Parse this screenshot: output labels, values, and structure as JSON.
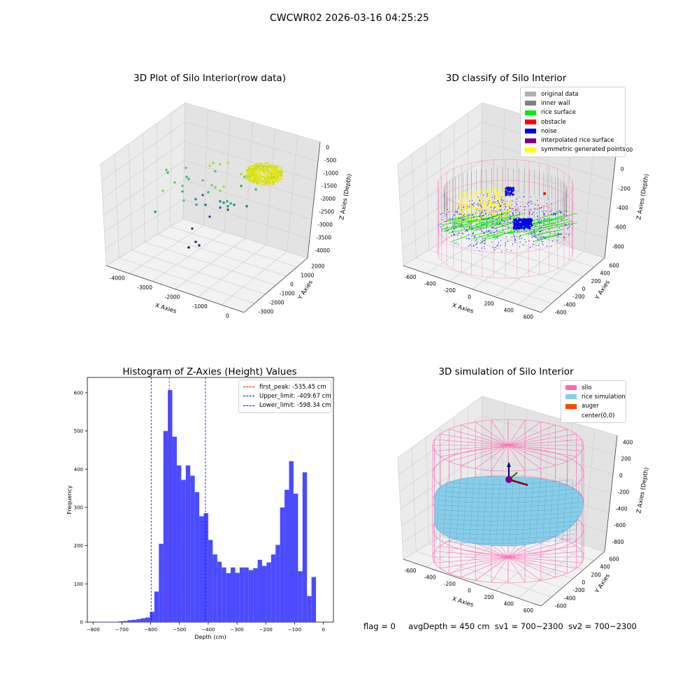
{
  "suptitle": "CWCWR02 2026-03-16 04:25:25",
  "chart_data": [
    {
      "type": "scatter",
      "title": "3D Plot of Silo Interior(row data)",
      "xlabel": "X Axies",
      "ylabel": "Y Axies",
      "zlabel": "Z Axies (Depth)",
      "x_ticks": [
        "-4000",
        "-3000",
        "-2000",
        "-1000",
        "0"
      ],
      "y_ticks": [
        "-3000",
        "-2000",
        "-1000",
        "0",
        "1000",
        "2000"
      ],
      "z_ticks": [
        "0",
        "-500",
        "-1000",
        "-1500",
        "-2000",
        "-2500",
        "-3000",
        "-3500",
        "-4000"
      ],
      "grid": true
    },
    {
      "type": "scatter",
      "title": "3D classify of Silo Interior",
      "xlabel": "X Axies",
      "ylabel": "Y Axies",
      "zlabel": "Z Axies (Depth)",
      "x_ticks": [
        "-600",
        "-400",
        "-200",
        "0",
        "200",
        "400",
        "600"
      ],
      "y_ticks": [
        "-600",
        "-400",
        "-200",
        "0",
        "200",
        "400",
        "600"
      ],
      "z_ticks": [
        "200",
        "0",
        "-200",
        "-400",
        "-600",
        "-800"
      ],
      "legend_position": "top-right",
      "legend": [
        {
          "label": "original data",
          "color": "#b0b0b0"
        },
        {
          "label": "inner wall",
          "color": "#808080"
        },
        {
          "label": "rice surface",
          "color": "#00ee00"
        },
        {
          "label": "obstacle",
          "color": "#ff0000"
        },
        {
          "label": "noise",
          "color": "#0000ee"
        },
        {
          "label": "interpolated rice surface",
          "color": "#800080"
        },
        {
          "label": "symmetric generated points",
          "color": "#ffff00"
        }
      ],
      "grid": true
    },
    {
      "type": "bar",
      "title": "Histogram of Z-Axies (Height) Values",
      "xlabel": "Depth (cm)",
      "ylabel": "Frequency",
      "xlim": [
        -820,
        35
      ],
      "ylim": [
        0,
        640
      ],
      "x_ticks": [
        -800,
        -700,
        -600,
        -500,
        -400,
        -300,
        -200,
        -100,
        0
      ],
      "y_ticks": [
        0,
        100,
        200,
        300,
        400,
        500,
        600
      ],
      "bar_color": "#4b4bff",
      "bin_start": -790,
      "bin_width": 15.6,
      "values": [
        1,
        1,
        1,
        1,
        1,
        2,
        3,
        5,
        6,
        8,
        10,
        12,
        27,
        80,
        205,
        500,
        607,
        485,
        410,
        372,
        410,
        383,
        340,
        277,
        285,
        215,
        177,
        158,
        143,
        128,
        143,
        129,
        143,
        143,
        136,
        141,
        163,
        147,
        156,
        177,
        202,
        300,
        346,
        421,
        336,
        133,
        392,
        68,
        118
      ],
      "vlines": [
        {
          "x": -535.45,
          "color": "#ff0000",
          "label": "first_peak: -535.45 cm"
        },
        {
          "x": -409.67,
          "color": "#0000ff",
          "label": "Upper_limit: -409.67 cm"
        },
        {
          "x": -598.34,
          "color": "#0000ff",
          "label": "Lower_limit: -598.34 cm"
        }
      ],
      "legend_position": "top-right",
      "grid": false
    },
    {
      "type": "scatter",
      "title": "3D simulation of Silo Interior",
      "xlabel": "X Axies",
      "ylabel": "Y Axies",
      "zlabel": "Z Axies (Depth)",
      "x_ticks": [
        "-600",
        "-400",
        "-200",
        "0",
        "200",
        "400",
        "600"
      ],
      "y_ticks": [
        "-600",
        "-400",
        "-200",
        "0",
        "200",
        "400",
        "600"
      ],
      "z_ticks": [
        "400",
        "200",
        "0",
        "-200",
        "-400",
        "-600",
        "-800"
      ],
      "legend_position": "top-right",
      "legend": [
        {
          "label": "silo",
          "color": "#ff69b4"
        },
        {
          "label": "rice simulation",
          "color": "#87ceeb"
        },
        {
          "label": "auger",
          "color": "#ff4500"
        },
        {
          "label": "center(0,0)",
          "color": "#ffffff"
        }
      ],
      "grid": true
    }
  ],
  "status": {
    "flag": "flag = 0",
    "avg": "avgDepth = 450 cm",
    "sv1": "sv1 = 700~2300",
    "sv2": "sv2 = 700~2300"
  }
}
